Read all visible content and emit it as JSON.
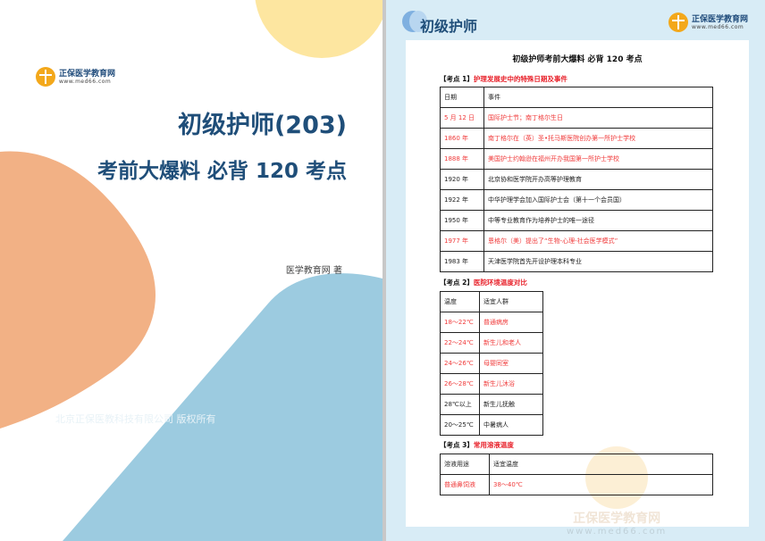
{
  "cover": {
    "logo": {
      "name": "正保医学教育网",
      "url": "www.med66.com"
    },
    "title": "初级护师(203)",
    "subtitle": "考前大爆料  必背 120 考点",
    "author": "医学教育网 著",
    "copyright": "北京正保医教科技有限公司 版权所有",
    "colors": {
      "yellow": "#fde6a0",
      "orange": "#f2b185",
      "blue": "#9ccbe0",
      "title": "#1f4e79"
    }
  },
  "page": {
    "header_title": "初级护师",
    "logo": {
      "name": "正保医学教育网",
      "url": "www.med66.com"
    },
    "doc_title": "初级护师考前大爆料  必背 120 考点",
    "sections": [
      {
        "tag": "【考点 1】",
        "title": "护理发展史中的特殊日期及事件",
        "headers": [
          "日期",
          "事件"
        ],
        "rows": [
          {
            "c": [
              "5 月 12 日",
              "国际护士节；南丁格尔生日"
            ],
            "red": true
          },
          {
            "c": [
              "1860 年",
              "南丁格尔在（英）圣•托马斯医院创办第一所护士学校"
            ],
            "red": true
          },
          {
            "c": [
              "1888 年",
              "美国护士约翰逊在福州开办我国第一所护士学校"
            ],
            "red": true
          },
          {
            "c": [
              "1920 年",
              "北京协和医学院开办高等护理教育"
            ],
            "red": false
          },
          {
            "c": [
              "1922 年",
              "中华护理学会加入国际护士会（第十一个会员国）"
            ],
            "red": false
          },
          {
            "c": [
              "1950 年",
              "中等专业教育作为培养护士的唯一途径"
            ],
            "red": false
          },
          {
            "c": [
              "1977 年",
              "恩格尔（美）提出了“生物-心理-社会医学模式”"
            ],
            "red": true
          },
          {
            "c": [
              "1983 年",
              "天津医学院首先开设护理本科专业"
            ],
            "red": false
          }
        ]
      },
      {
        "tag": "【考点 2】",
        "title": "医院环境温度对比",
        "headers": [
          "温度",
          "适宜人群"
        ],
        "rows": [
          {
            "c": [
              "18～22℃",
              "普通病房"
            ],
            "red": true
          },
          {
            "c": [
              "22～24℃",
              "新生儿和老人"
            ],
            "red": true
          },
          {
            "c": [
              "24～26℃",
              "母婴同室"
            ],
            "red": true
          },
          {
            "c": [
              "26～28℃",
              "新生儿沐浴"
            ],
            "red": true
          },
          {
            "c": [
              "28℃以上",
              "新生儿抚触"
            ],
            "red": false
          },
          {
            "c": [
              "20～25℃",
              "中暑病人"
            ],
            "red": false
          }
        ]
      },
      {
        "tag": "【考点 3】",
        "title": "常用溶液温度",
        "headers": [
          "溶液用途",
          "适宜温度"
        ],
        "rows": [
          {
            "c": [
              "普通鼻饲液",
              "38～40℃"
            ],
            "red": true
          }
        ]
      }
    ],
    "watermark": {
      "name": "正保医学教育网",
      "url": "www.med66.com"
    }
  }
}
